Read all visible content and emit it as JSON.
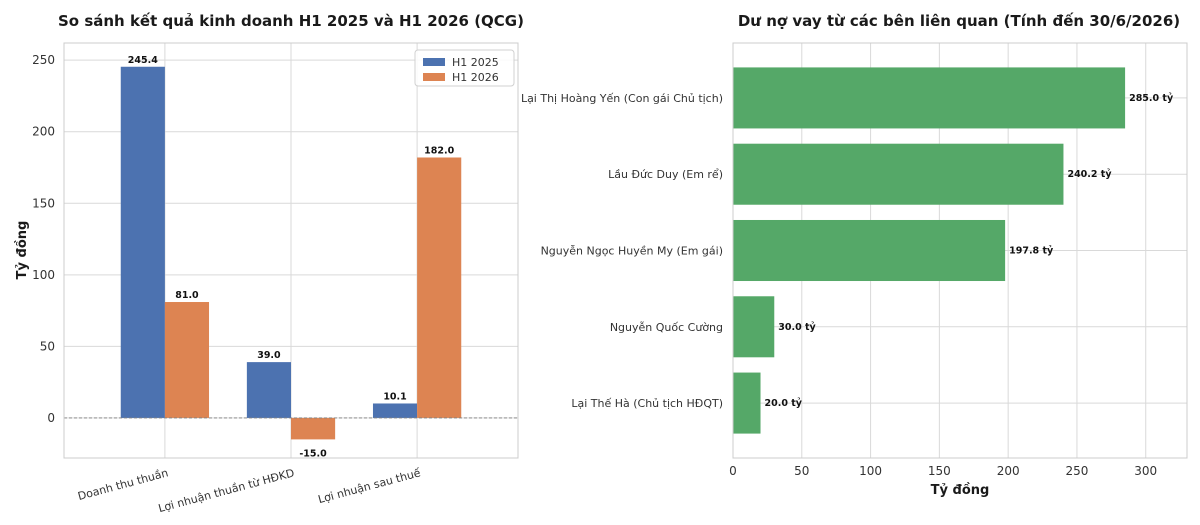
{
  "chart_data": [
    {
      "type": "bar",
      "title": "So sánh kết quả kinh doanh H1 2025 và H1 2026 (QCG)",
      "ylabel": "Tỷ đồng",
      "xlabel": "",
      "ylim": [
        -28,
        262
      ],
      "yticks": [
        0,
        50,
        100,
        150,
        200,
        250
      ],
      "grid": true,
      "legend_position": "top-right",
      "categories": [
        "Doanh thu thuần",
        "Lợi nhuận thuần từ HĐKD",
        "Lợi nhuận sau thuế"
      ],
      "series": [
        {
          "name": "H1 2025",
          "color": "#4c72b0",
          "values": [
            245.4,
            39.0,
            10.1
          ],
          "labels": [
            "245.4",
            "39.0",
            "10.1"
          ]
        },
        {
          "name": "H1 2026",
          "color": "#dd8452",
          "values": [
            81.0,
            -15.0,
            182.0
          ],
          "labels": [
            "81.0",
            "-15.0",
            "182.0"
          ]
        }
      ]
    },
    {
      "type": "bar",
      "orientation": "horizontal",
      "title": "Dư nợ vay từ các bên liên quan (Tính đến 30/6/2026)",
      "xlabel": "Tỷ đồng",
      "ylabel": "",
      "xlim": [
        0,
        330
      ],
      "xticks": [
        0,
        50,
        100,
        150,
        200,
        250,
        300
      ],
      "grid": true,
      "color": "#55a868",
      "categories": [
        "Lại Thị Hoàng Yến (Con gái Chủ tịch)",
        "Lầu Đức Duy (Em rể)",
        "Nguyễn Ngọc Huyền My (Em gái)",
        "Nguyễn Quốc Cường",
        "Lại Thế Hà (Chủ tịch HĐQT)"
      ],
      "values": [
        285.0,
        240.2,
        197.8,
        30.0,
        20.0
      ],
      "labels": [
        "285.0 tỷ",
        "240.2 tỷ",
        "197.8 tỷ",
        "30.0 tỷ",
        "20.0 tỷ"
      ]
    }
  ]
}
